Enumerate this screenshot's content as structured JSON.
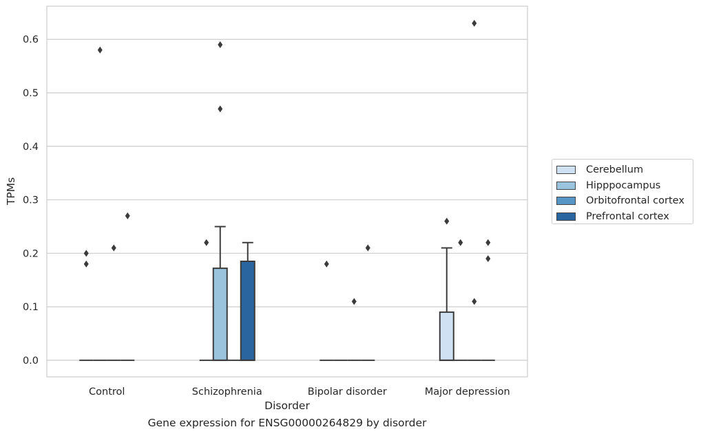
{
  "chart_data": {
    "type": "box",
    "xlabel": "Disorder",
    "ylabel": "TPMs",
    "caption": "Gene expression for ENSG00000264829 by disorder",
    "ylim": [
      -0.031,
      0.662
    ],
    "yticks": [
      "0.0",
      "0.1",
      "0.2",
      "0.3",
      "0.4",
      "0.5",
      "0.6"
    ],
    "grid": true,
    "legend_position": "right",
    "categories": [
      "Control",
      "Schizophrenia",
      "Bipolar disorder",
      "Major depression"
    ],
    "series": [
      {
        "name": "Cerebellum",
        "color": "#cfe1f2",
        "boxes": [
          {
            "q1": 0,
            "median": 0,
            "q3": 0,
            "whisker_low": 0,
            "whisker_high": 0,
            "outliers": [
              0.18,
              0.2
            ]
          },
          {
            "q1": 0,
            "median": 0,
            "q3": 0,
            "whisker_low": 0,
            "whisker_high": 0,
            "outliers": [
              0.22
            ]
          },
          {
            "q1": 0,
            "median": 0,
            "q3": 0,
            "whisker_low": 0,
            "whisker_high": 0,
            "outliers": [
              0.18
            ]
          },
          {
            "q1": 0,
            "median": 0,
            "q3": 0.09,
            "whisker_low": 0,
            "whisker_high": 0.21,
            "outliers": [
              0.26
            ]
          }
        ]
      },
      {
        "name": "Hipppocampus",
        "color": "#9ac3de",
        "boxes": [
          {
            "q1": 0,
            "median": 0,
            "q3": 0,
            "whisker_low": 0,
            "whisker_high": 0,
            "outliers": [
              0.58
            ]
          },
          {
            "q1": 0,
            "median": 0,
            "q3": 0.172,
            "whisker_low": 0,
            "whisker_high": 0.25,
            "outliers": [
              0.47,
              0.59
            ]
          },
          {
            "q1": 0,
            "median": 0,
            "q3": 0,
            "whisker_low": 0,
            "whisker_high": 0,
            "outliers": []
          },
          {
            "q1": 0,
            "median": 0,
            "q3": 0,
            "whisker_low": 0,
            "whisker_high": 0,
            "outliers": [
              0.22
            ]
          }
        ]
      },
      {
        "name": "Orbitofrontal cortex",
        "color": "#5596c6",
        "boxes": [
          {
            "q1": 0,
            "median": 0,
            "q3": 0,
            "whisker_low": 0,
            "whisker_high": 0,
            "outliers": [
              0.21
            ]
          },
          {
            "q1": 0,
            "median": 0,
            "q3": 0,
            "whisker_low": 0,
            "whisker_high": 0,
            "outliers": []
          },
          {
            "q1": 0,
            "median": 0,
            "q3": 0,
            "whisker_low": 0,
            "whisker_high": 0,
            "outliers": [
              0.11
            ]
          },
          {
            "q1": 0,
            "median": 0,
            "q3": 0,
            "whisker_low": 0,
            "whisker_high": 0,
            "outliers": [
              0.11,
              0.63
            ]
          }
        ]
      },
      {
        "name": "Prefrontal cortex",
        "color": "#2a65a0",
        "boxes": [
          {
            "q1": 0,
            "median": 0,
            "q3": 0,
            "whisker_low": 0,
            "whisker_high": 0,
            "outliers": [
              0.27
            ]
          },
          {
            "q1": 0,
            "median": 0,
            "q3": 0.185,
            "whisker_low": 0,
            "whisker_high": 0.22,
            "outliers": []
          },
          {
            "q1": 0,
            "median": 0,
            "q3": 0,
            "whisker_low": 0,
            "whisker_high": 0,
            "outliers": [
              0.21
            ]
          },
          {
            "q1": 0,
            "median": 0,
            "q3": 0,
            "whisker_low": 0,
            "whisker_high": 0,
            "outliers": [
              0.19,
              0.22
            ]
          }
        ]
      }
    ]
  }
}
